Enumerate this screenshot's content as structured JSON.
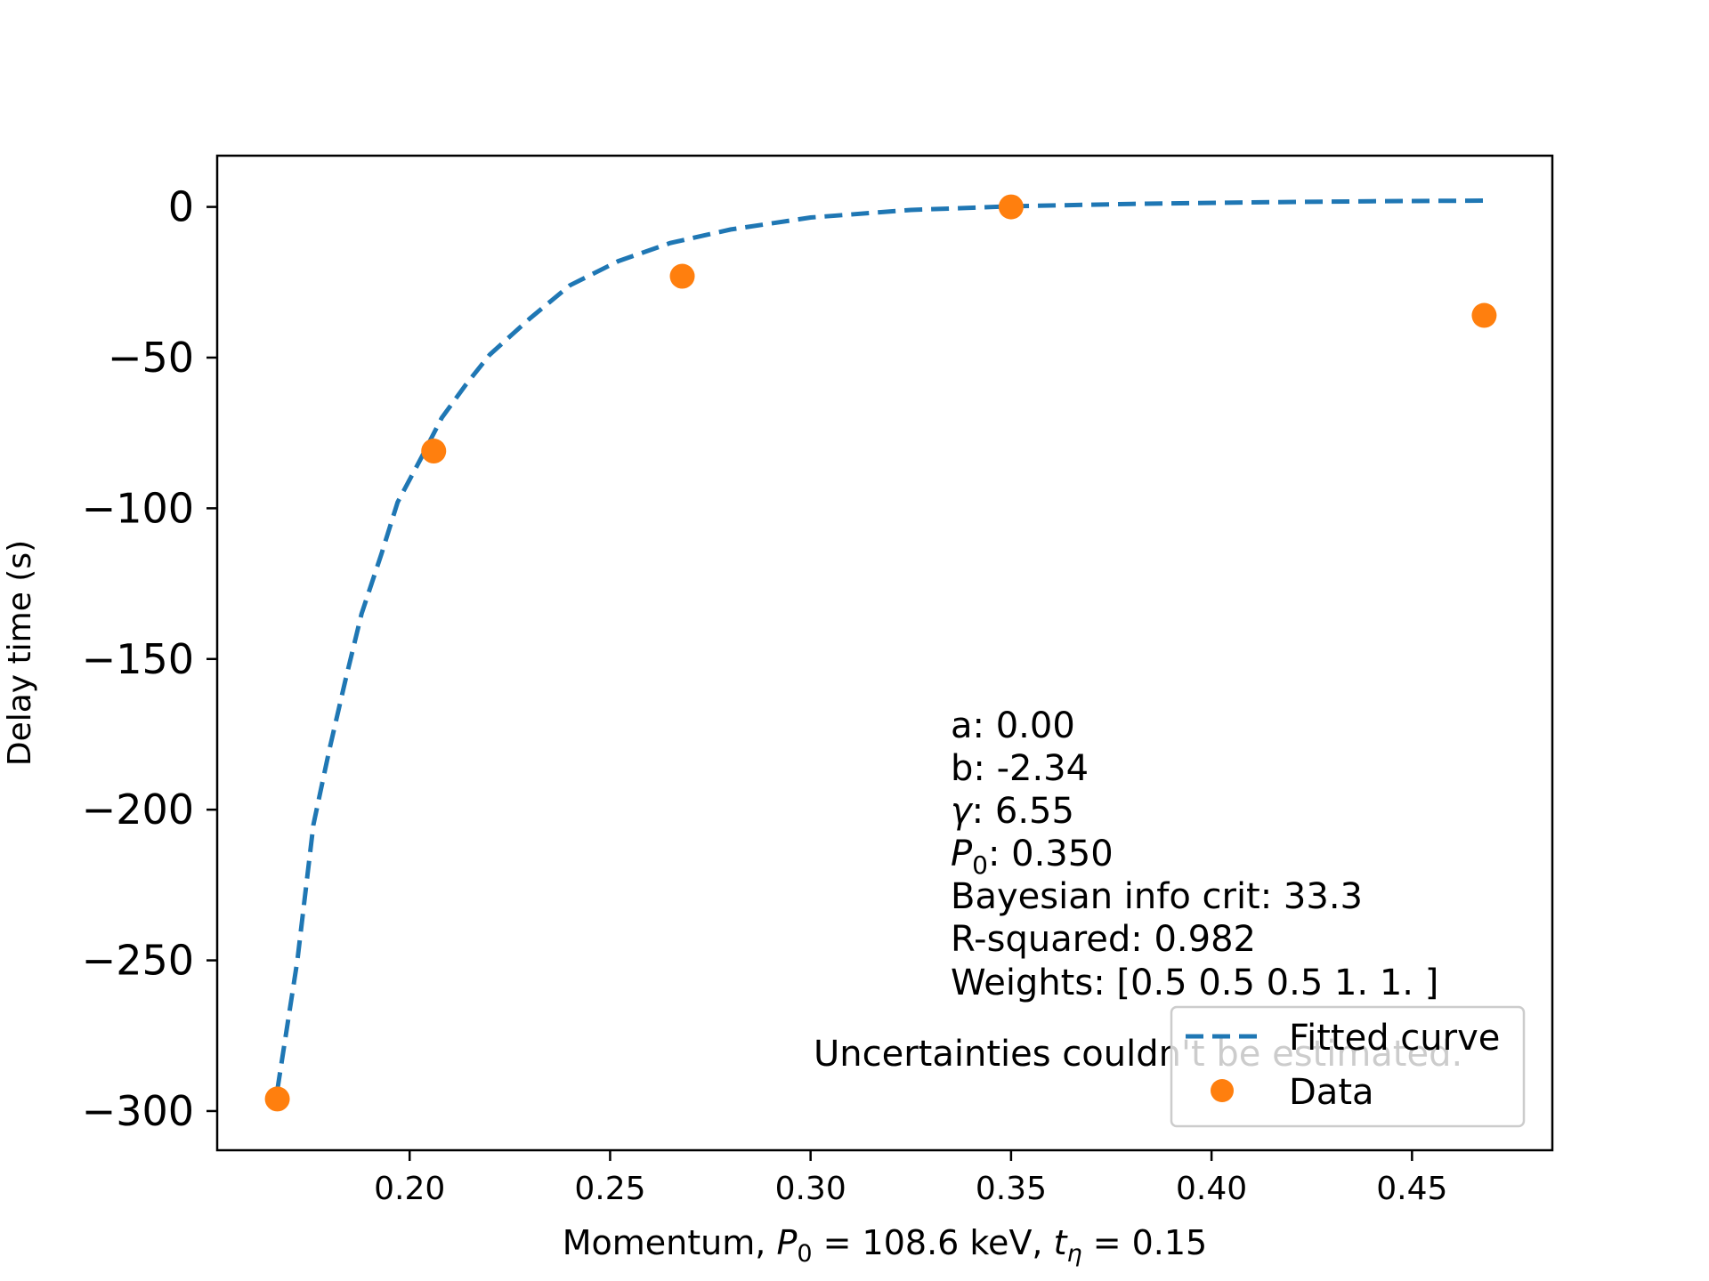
{
  "chart_data": {
    "type": "scatter",
    "xlabel_parts": {
      "prefix": "Momentum, ",
      "p0_symbol": "P",
      "p0_subscript": "0",
      "p0_value": " = 108.6 keV, ",
      "t_symbol": "t",
      "t_subscript": "η",
      "t_value": " = 0.15"
    },
    "ylabel": "Delay time (s)",
    "xlim": [
      0.152,
      0.485
    ],
    "ylim": [
      -313,
      17
    ],
    "x_ticks": [
      0.2,
      0.25,
      0.3,
      0.35,
      0.4,
      0.45
    ],
    "x_tick_labels": [
      "0.20",
      "0.25",
      "0.30",
      "0.35",
      "0.40",
      "0.45"
    ],
    "y_ticks": [
      0,
      -50,
      -100,
      -150,
      -200,
      -250,
      -300
    ],
    "y_tick_labels": [
      "0",
      "−50",
      "−100",
      "−150",
      "−200",
      "−250",
      "−300"
    ],
    "grid": false,
    "legend_position": "lower-right",
    "series": [
      {
        "name": "Fitted curve",
        "style": "dashed-line",
        "color": "#1f77b4",
        "x": [
          0.167,
          0.172,
          0.176,
          0.18,
          0.184,
          0.188,
          0.193,
          0.197,
          0.203,
          0.208,
          0.214,
          0.22,
          0.23,
          0.24,
          0.252,
          0.265,
          0.28,
          0.3,
          0.325,
          0.35,
          0.38,
          0.41,
          0.44,
          0.469
        ],
        "y": [
          -293,
          -250,
          -205,
          -180,
          -157,
          -135,
          -115,
          -98,
          -83,
          -70,
          -59,
          -49,
          -37,
          -26,
          -18,
          -12,
          -7.5,
          -3.5,
          -1,
          0.2,
          1,
          1.5,
          1.9,
          2.1
        ]
      },
      {
        "name": "Data",
        "style": "markers",
        "color": "#ff7f0e",
        "x": [
          0.167,
          0.206,
          0.268,
          0.35,
          0.468
        ],
        "y": [
          -296,
          -81,
          -23,
          0,
          -36
        ]
      }
    ],
    "annotations": {
      "a_line": "a: 0.00",
      "b_line": "b: -2.34",
      "gamma_symbol": "γ",
      "gamma_value": ": 6.55",
      "p0_symbol": "P",
      "p0_subscript": "0",
      "p0_value": ": 0.350",
      "bic_line": "Bayesian info crit: 33.3",
      "r2_line": "R-squared: 0.982",
      "weights_line": "Weights: [0.5 0.5 0.5 1.  1. ]",
      "warning": "Uncertainties couldn't be estimated.",
      "warning_color": "#ff0000"
    }
  }
}
